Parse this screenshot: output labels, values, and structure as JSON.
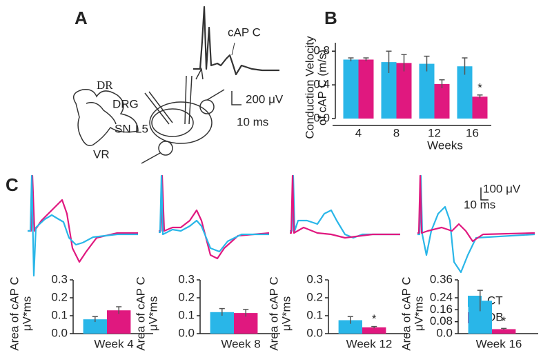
{
  "panel_labels": [
    "A",
    "B",
    "C"
  ],
  "diagram": {
    "labels": [
      "DR",
      "DRG",
      "SN",
      "L5",
      "VR"
    ],
    "trace_label": "cAP C",
    "scale_bar": [
      "200 μV",
      "10 ms"
    ]
  },
  "trace_scale_bar": [
    "100 μV",
    "10 ms"
  ],
  "legend": [
    {
      "name": "CT",
      "color": "#29b6e8"
    },
    {
      "name": "DB",
      "color": "#e0187f"
    }
  ],
  "chart_data": [
    {
      "type": "bar",
      "ylabel": [
        "Conduction Velocity",
        "of cAP C (m/s)"
      ],
      "xlabel": "Weeks",
      "categories": [
        "4",
        "8",
        "12",
        "16"
      ],
      "series": [
        {
          "values": [
            0.7,
            0.67,
            0.65,
            0.62
          ],
          "errors": [
            0.02,
            0.13,
            0.09,
            0.1
          ]
        },
        {
          "values": [
            0.7,
            0.66,
            0.41,
            0.26
          ],
          "errors": [
            0.02,
            0.1,
            0.05,
            0.02
          ]
        }
      ],
      "annotation": "*",
      "ylim": [
        0,
        0.9
      ],
      "yticks": [
        {
          "value": 0,
          "label": "0.0"
        },
        0.4,
        0.8
      ]
    },
    {
      "type": "bar",
      "ylabel": [
        "Area of cAP C",
        "μV*ms"
      ],
      "xlabel": "Week 4",
      "series": [
        {
          "values": [
            0.08
          ],
          "errors": [
            0.015
          ]
        },
        {
          "values": [
            0.13
          ],
          "errors": [
            0.02
          ]
        }
      ],
      "ylim": [
        0,
        0.3
      ],
      "yticks": [
        {
          "value": 0,
          "label": "0.0"
        },
        0.1,
        0.2,
        0.3
      ]
    },
    {
      "type": "bar",
      "ylabel": [
        "Area of cAP C",
        "μV*ms"
      ],
      "xlabel": "Week 8",
      "series": [
        {
          "values": [
            0.12
          ],
          "errors": [
            0.02
          ]
        },
        {
          "values": [
            0.115
          ],
          "errors": [
            0.02
          ]
        }
      ],
      "ylim": [
        0,
        0.3
      ],
      "yticks": [
        {
          "value": 0,
          "label": "0.0"
        },
        0.1,
        0.2,
        0.3
      ]
    },
    {
      "type": "bar",
      "ylabel": [
        "Area of cAP C",
        "μV*ms"
      ],
      "xlabel": "Week 12",
      "series": [
        {
          "values": [
            0.075
          ],
          "errors": [
            0.02
          ]
        },
        {
          "values": [
            0.035
          ],
          "errors": [
            0.005
          ]
        }
      ],
      "annotation": "*",
      "ylim": [
        0,
        0.3
      ],
      "yticks": [
        {
          "value": 0,
          "label": "0.0"
        },
        0.1,
        0.2,
        0.3
      ]
    },
    {
      "type": "bar",
      "ylabel": [
        "Area of cAP C",
        "μV*ms"
      ],
      "xlabel": "Week 16",
      "series": [
        {
          "values": [
            0.22
          ],
          "errors": [
            0.07
          ]
        },
        {
          "values": [
            0.03
          ],
          "errors": [
            0.005
          ]
        }
      ],
      "annotation": "*",
      "ylim": [
        0,
        0.36
      ],
      "yticks": [
        {
          "value": 0,
          "label": "0.0"
        },
        0.08,
        0.16,
        0.24,
        0.36
      ]
    }
  ]
}
